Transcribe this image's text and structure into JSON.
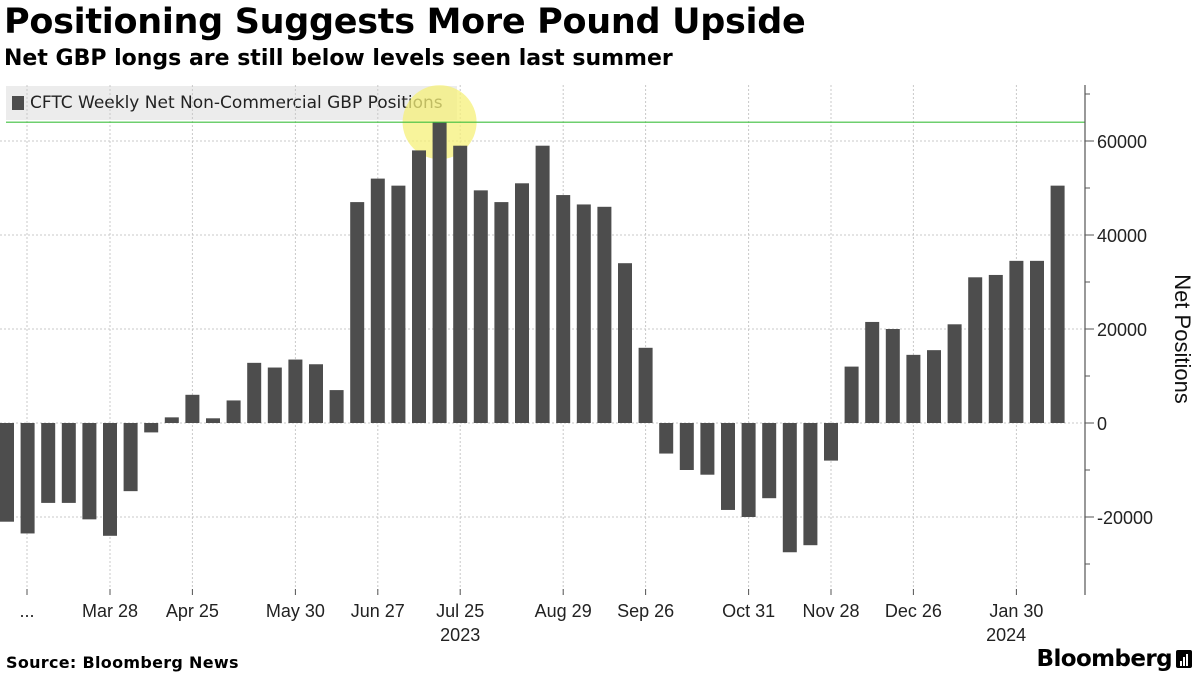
{
  "header": {
    "title": "Positioning Suggests More Pound Upside",
    "subtitle": "Net GBP longs are still below levels seen last summer"
  },
  "legend": {
    "label": "CFTC Weekly Net Non-Commercial GBP Positions"
  },
  "footer": {
    "source": "Source: Bloomberg News",
    "brand": "Bloomberg"
  },
  "colors": {
    "bar": "#4d4d4d",
    "reference_line": "#3fbf3f",
    "highlight": "#f5f07a",
    "grid": "#c8c8c8",
    "axis": "#555555"
  },
  "chart_data": {
    "type": "bar",
    "title": "Positioning Suggests More Pound Upside",
    "ylabel": "Net Positions",
    "xlabel": "",
    "ylim": [
      -33000,
      72000
    ],
    "yticks": [
      -20000,
      0,
      20000,
      40000,
      60000
    ],
    "reference_line": 64000,
    "highlight_index": 21,
    "series": [
      {
        "name": "CFTC Weekly Net Non-Commercial GBP Positions",
        "values": [
          -21000,
          -23500,
          -17000,
          -17000,
          -20500,
          -24000,
          -14500,
          -2000,
          1200,
          6000,
          1000,
          4800,
          12800,
          11800,
          13500,
          12500,
          7000,
          47000,
          52000,
          50500,
          58000,
          64000,
          59000,
          49500,
          47000,
          51000,
          59000,
          48500,
          46500,
          46000,
          34000,
          16000,
          -6500,
          -10000,
          -11000,
          -18500,
          -20000,
          -16000,
          -27500,
          -26000,
          -8000,
          12000,
          21500,
          20000,
          14500,
          15500,
          21000,
          31000,
          31500,
          34500,
          34500,
          50500
        ]
      }
    ],
    "x_tick_labels": [
      {
        "label": "...",
        "index": 0
      },
      {
        "label": "Mar 28",
        "index": 5
      },
      {
        "label": "Apr 25",
        "index": 9
      },
      {
        "label": "May 30",
        "index": 14
      },
      {
        "label": "Jun 27",
        "index": 18
      },
      {
        "label": "Jul 25",
        "index": 22
      },
      {
        "label": "Aug 29",
        "index": 27
      },
      {
        "label": "Sep 26",
        "index": 31
      },
      {
        "label": "Oct 31",
        "index": 36
      },
      {
        "label": "Nov 28",
        "index": 40
      },
      {
        "label": "Dec 26",
        "index": 44
      },
      {
        "label": "Jan 30",
        "index": 49
      }
    ],
    "year_labels": [
      {
        "label": "2023",
        "index": 22
      },
      {
        "label": "2024",
        "index": 48.5
      }
    ]
  }
}
